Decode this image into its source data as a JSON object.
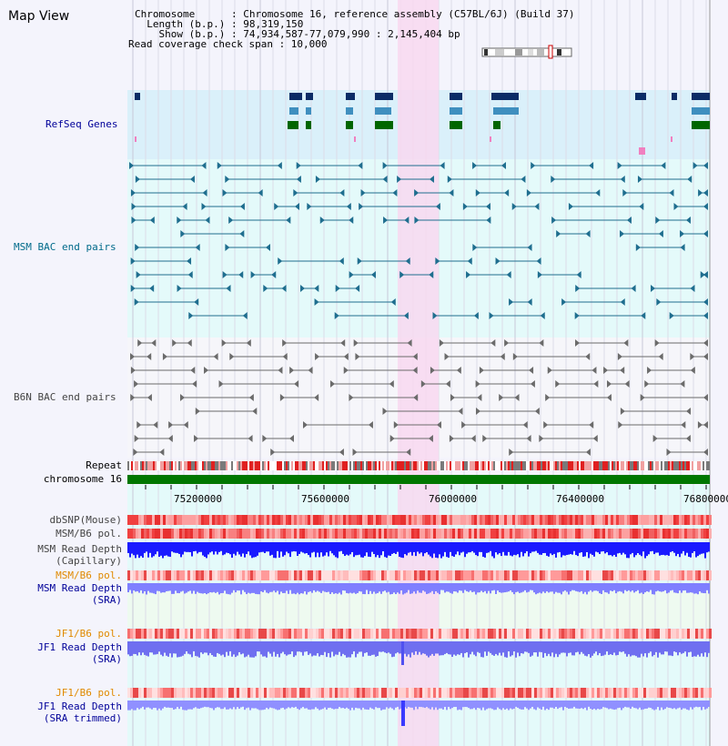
{
  "title": "Map View",
  "info": {
    "chromosome": "Chromosome      : Chromosome 16, reference assembly (C57BL/6J) (Build 37)",
    "length": "  Length (b.p.) : 98,319,150",
    "show": "    Show (b.p.) : 74,934,587-77,079,990 : 2,145,404 bp",
    "coverage": "Read coverage check span : 10,000"
  },
  "tracks": {
    "refseq": "RefSeq Genes",
    "msm_bac": "MSM BAC end pairs",
    "b6n_bac": "B6N BAC end pairs",
    "repeat": "Repeat",
    "chromosome": "chromosome 16",
    "dbsnp": "dbSNP(Mouse)",
    "msm_b6_pol_1": "MSM/B6 pol.",
    "msm_read_depth_cap_1": "MSM Read Depth",
    "msm_read_depth_cap_2": "(Capillary)",
    "msm_b6_pol_2": "MSM/B6 pol.",
    "msm_read_depth_sra_1": "MSM Read Depth",
    "msm_read_depth_sra_2": "(SRA)",
    "jf1_b6_pol_1": "JF1/B6 pol.",
    "jf1_read_depth_sra_1": "JF1 Read Depth",
    "jf1_read_depth_sra_2": "(SRA)",
    "jf1_b6_pol_2": "JF1/B6 pol.",
    "jf1_read_depth_trim_1": "JF1 Read Depth",
    "jf1_read_depth_trim_2": "(SRA trimmed)"
  },
  "axis_ticks": [
    "75200000",
    "75600000",
    "76000000",
    "76400000",
    "76800000"
  ],
  "colors": {
    "refseq_bg": "#daf0fa",
    "track_bg": "#e4fafa",
    "highlight": "#f8d8f0",
    "gene_navy": "#0b2c66",
    "gene_blue": "#3f8fbf",
    "gene_green": "#006600",
    "msm_pair": "#1f6e8f",
    "b6n_pair": "#6b6b6b",
    "depth_blue": "#1a1aff",
    "depth_light": "#7f7fff",
    "label_navy": "#000099",
    "label_orange": "#e08a00",
    "label_teal": "#006a8a"
  }
}
